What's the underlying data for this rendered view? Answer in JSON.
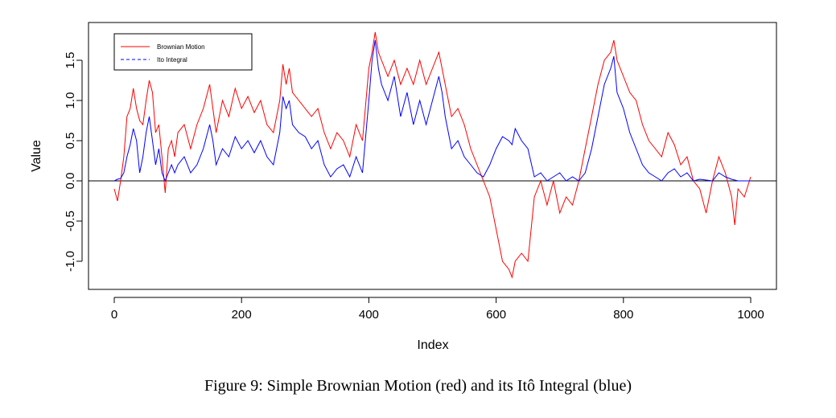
{
  "caption": "Figure 9: Simple Brownian Motion (red) and its Itô Integral (blue)",
  "colors": {
    "brownian": "#ff0000",
    "ito": "#0000ff",
    "axis": "#000000"
  },
  "chart_data": {
    "type": "line",
    "xlabel": "Index",
    "ylabel": "Value",
    "xlim": [
      0,
      1000
    ],
    "ylim": [
      -1.35,
      1.97
    ],
    "x_ticks": [
      0,
      200,
      400,
      600,
      800,
      1000
    ],
    "x_tick_labels": [
      "0",
      "200",
      "400",
      "600",
      "800",
      "1000"
    ],
    "y_ticks": [
      -1.0,
      -0.5,
      0.0,
      0.5,
      1.0,
      1.5
    ],
    "y_tick_labels": [
      "-1.0",
      "-0.5",
      "0.0",
      "0.5",
      "1.0",
      "1.5"
    ],
    "reference_line": 0,
    "legend_position": "top-left",
    "series": [
      {
        "name": "Brownian Motion",
        "color": "#ff0000",
        "line_style": "solid",
        "x": [
          0,
          5,
          10,
          15,
          20,
          25,
          30,
          35,
          40,
          45,
          50,
          55,
          60,
          65,
          70,
          75,
          80,
          85,
          90,
          95,
          100,
          110,
          120,
          130,
          140,
          150,
          155,
          160,
          170,
          180,
          190,
          200,
          210,
          220,
          230,
          240,
          250,
          260,
          265,
          270,
          275,
          280,
          290,
          300,
          310,
          320,
          330,
          340,
          350,
          360,
          370,
          380,
          390,
          400,
          405,
          410,
          415,
          420,
          430,
          440,
          450,
          460,
          470,
          480,
          490,
          500,
          510,
          515,
          520,
          530,
          540,
          550,
          560,
          570,
          580,
          590,
          600,
          610,
          620,
          625,
          630,
          640,
          650,
          660,
          670,
          680,
          690,
          700,
          710,
          720,
          730,
          740,
          750,
          760,
          770,
          780,
          785,
          790,
          800,
          810,
          820,
          830,
          840,
          850,
          860,
          870,
          880,
          890,
          900,
          910,
          920,
          930,
          940,
          950,
          960,
          970,
          975,
          980,
          990,
          1000
        ],
        "y": [
          -0.1,
          -0.25,
          0.0,
          0.3,
          0.8,
          0.9,
          1.15,
          0.9,
          0.75,
          0.7,
          1.0,
          1.25,
          1.1,
          0.6,
          0.7,
          0.3,
          -0.15,
          0.4,
          0.5,
          0.3,
          0.6,
          0.7,
          0.4,
          0.7,
          0.9,
          1.2,
          0.9,
          0.6,
          1.0,
          0.8,
          1.15,
          0.9,
          1.05,
          0.85,
          1.0,
          0.7,
          0.6,
          1.0,
          1.45,
          1.2,
          1.4,
          1.1,
          1.0,
          0.9,
          0.8,
          0.9,
          0.6,
          0.4,
          0.6,
          0.5,
          0.3,
          0.7,
          0.5,
          1.4,
          1.6,
          1.85,
          1.6,
          1.5,
          1.3,
          1.5,
          1.2,
          1.4,
          1.2,
          1.5,
          1.2,
          1.4,
          1.6,
          1.4,
          1.2,
          0.8,
          0.9,
          0.7,
          0.4,
          0.2,
          0.0,
          -0.2,
          -0.6,
          -1.0,
          -1.1,
          -1.2,
          -1.0,
          -0.9,
          -1.0,
          -0.2,
          0.0,
          -0.3,
          0.0,
          -0.4,
          -0.2,
          -0.3,
          0.0,
          0.4,
          0.8,
          1.2,
          1.5,
          1.6,
          1.75,
          1.5,
          1.3,
          1.1,
          1.0,
          0.7,
          0.5,
          0.4,
          0.3,
          0.6,
          0.45,
          0.2,
          0.3,
          0.0,
          -0.1,
          -0.4,
          0.0,
          0.3,
          0.1,
          -0.2,
          -0.55,
          -0.1,
          -0.2,
          0.05
        ]
      },
      {
        "name": "Ito Integral",
        "color": "#0000ff",
        "line_style": "dashed",
        "x": [
          0,
          5,
          10,
          15,
          20,
          25,
          30,
          35,
          40,
          45,
          50,
          55,
          60,
          65,
          70,
          75,
          80,
          85,
          90,
          95,
          100,
          110,
          120,
          130,
          140,
          150,
          155,
          160,
          170,
          180,
          190,
          200,
          210,
          220,
          230,
          240,
          250,
          260,
          265,
          270,
          275,
          280,
          290,
          300,
          310,
          320,
          330,
          340,
          350,
          360,
          370,
          380,
          390,
          400,
          405,
          410,
          415,
          420,
          430,
          440,
          450,
          460,
          470,
          480,
          490,
          500,
          510,
          515,
          520,
          530,
          540,
          550,
          560,
          570,
          580,
          590,
          600,
          610,
          620,
          625,
          630,
          640,
          650,
          660,
          670,
          680,
          690,
          700,
          710,
          720,
          730,
          740,
          750,
          760,
          770,
          780,
          785,
          790,
          800,
          810,
          820,
          830,
          840,
          850,
          860,
          870,
          880,
          890,
          900,
          910,
          920,
          930,
          940,
          950,
          960,
          970,
          975,
          980,
          990,
          1000
        ],
        "y": [
          0.0,
          0.02,
          0.03,
          0.1,
          0.3,
          0.45,
          0.65,
          0.5,
          0.1,
          0.3,
          0.6,
          0.8,
          0.5,
          0.2,
          0.4,
          0.1,
          0.0,
          0.1,
          0.2,
          0.1,
          0.2,
          0.3,
          0.1,
          0.2,
          0.4,
          0.7,
          0.5,
          0.2,
          0.4,
          0.3,
          0.55,
          0.4,
          0.5,
          0.35,
          0.5,
          0.3,
          0.2,
          0.6,
          1.05,
          0.9,
          1.0,
          0.7,
          0.6,
          0.55,
          0.4,
          0.5,
          0.2,
          0.05,
          0.15,
          0.2,
          0.05,
          0.3,
          0.1,
          1.0,
          1.5,
          1.75,
          1.4,
          1.2,
          1.0,
          1.3,
          0.8,
          1.1,
          0.7,
          1.0,
          0.7,
          1.0,
          1.3,
          1.1,
          0.8,
          0.4,
          0.5,
          0.3,
          0.2,
          0.1,
          0.05,
          0.2,
          0.4,
          0.55,
          0.5,
          0.45,
          0.65,
          0.5,
          0.4,
          0.05,
          0.1,
          0.0,
          0.05,
          0.1,
          0.0,
          0.05,
          0.0,
          0.1,
          0.4,
          0.8,
          1.2,
          1.4,
          1.55,
          1.1,
          0.9,
          0.6,
          0.4,
          0.2,
          0.1,
          0.05,
          0.0,
          0.1,
          0.15,
          0.05,
          0.1,
          0.0,
          0.02,
          0.01,
          0.0,
          0.1,
          0.05,
          0.02,
          0.01,
          0.0,
          0.0,
          0.0
        ]
      }
    ]
  }
}
